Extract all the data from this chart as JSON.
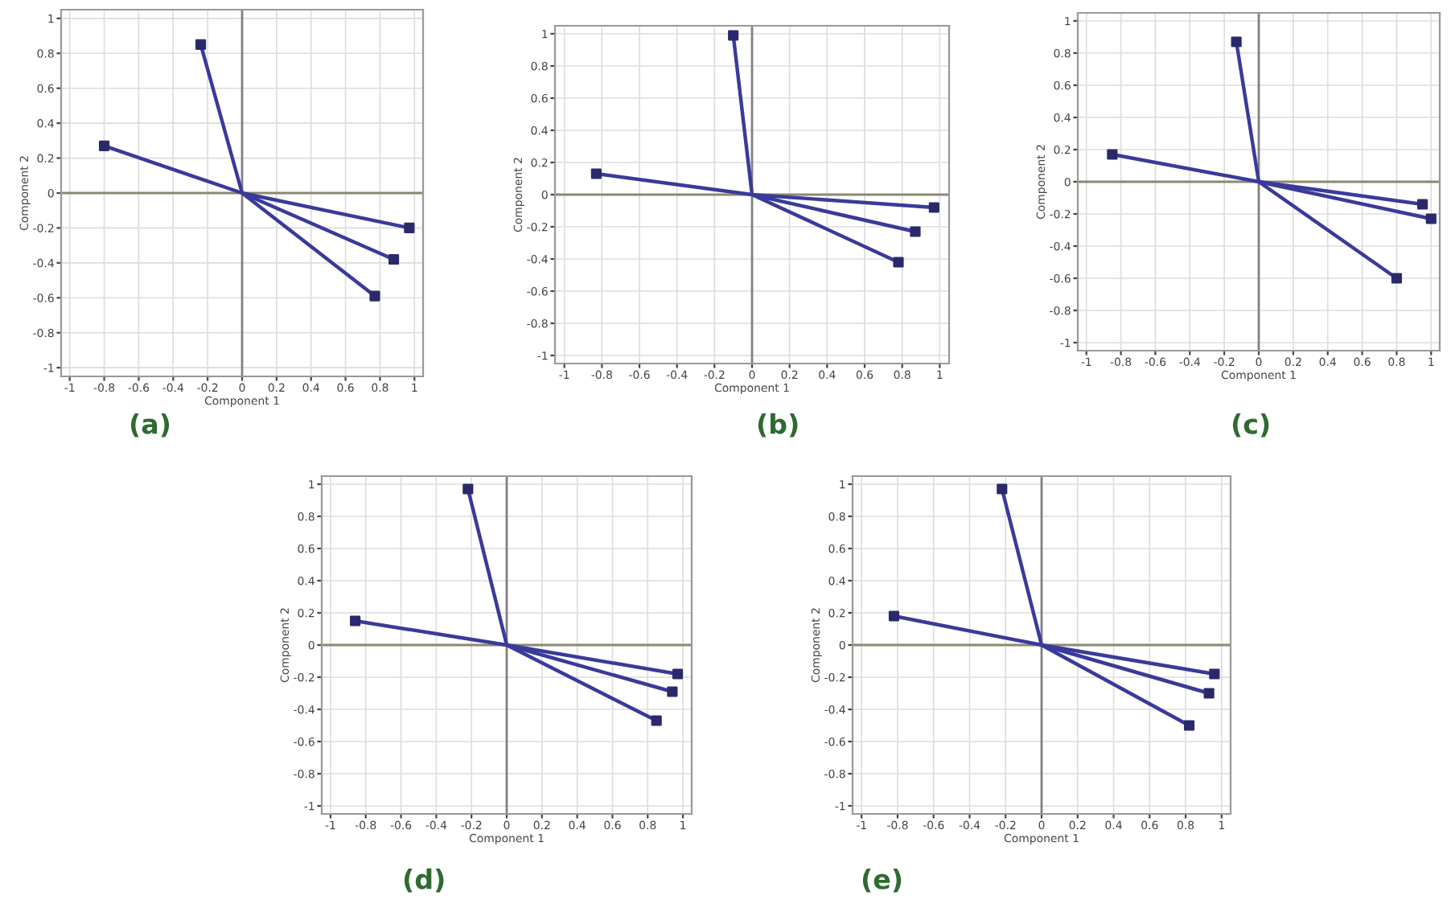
{
  "chart_data": [
    {
      "type": "line",
      "title": "(a)",
      "xlabel": "Component 1",
      "ylabel": "Component 2",
      "xlim": [
        -1.05,
        1.05
      ],
      "ylim": [
        -1.05,
        1.05
      ],
      "xticks": [
        -1,
        -0.8,
        -0.6,
        -0.4,
        -0.2,
        0,
        0.2,
        0.4,
        0.6,
        0.8,
        1
      ],
      "yticks": [
        -1,
        -0.8,
        -0.6,
        -0.4,
        -0.2,
        0,
        0.2,
        0.4,
        0.6,
        0.8,
        1
      ],
      "grid": true,
      "ref_lines": [
        {
          "axis": "x",
          "value": 0,
          "color": "#808080"
        },
        {
          "axis": "y",
          "value": 0,
          "color": "#8a8a70"
        }
      ],
      "series": [
        {
          "color": "#3a3a9a",
          "x": [
            0,
            -0.24
          ],
          "values": [
            0,
            0.85
          ]
        },
        {
          "color": "#3a3a9a",
          "x": [
            -0.8,
            0,
            0.97
          ],
          "values": [
            0.27,
            0,
            -0.2
          ]
        },
        {
          "color": "#3a3a9a",
          "x": [
            0,
            0.88
          ],
          "values": [
            0,
            -0.38
          ]
        },
        {
          "color": "#3a3a9a",
          "x": [
            0,
            0.77
          ],
          "values": [
            0,
            -0.59
          ]
        },
        {
          "type": "scatter",
          "marker": "square",
          "color": "#2a2a6a",
          "x": [
            -0.24,
            -0.8,
            0.97,
            0.88,
            0.77
          ],
          "values": [
            0.85,
            0.27,
            -0.2,
            -0.38,
            -0.59
          ]
        }
      ]
    },
    {
      "type": "line",
      "title": "(b)",
      "xlabel": "Component 1",
      "ylabel": "Component 2",
      "xlim": [
        -1.05,
        1.05
      ],
      "ylim": [
        -1.05,
        1.05
      ],
      "xticks": [
        -1,
        -0.8,
        -0.6,
        -0.4,
        -0.2,
        0,
        0.2,
        0.4,
        0.6,
        0.8,
        1
      ],
      "yticks": [
        -1,
        -0.8,
        -0.6,
        -0.4,
        -0.2,
        0,
        0.2,
        0.4,
        0.6,
        0.8,
        1
      ],
      "grid": true,
      "ref_lines": [
        {
          "axis": "x",
          "value": 0,
          "color": "#808080"
        },
        {
          "axis": "y",
          "value": 0,
          "color": "#8a8a70"
        }
      ],
      "series": [
        {
          "color": "#3a3a9a",
          "x": [
            0,
            -0.1
          ],
          "values": [
            0,
            0.99
          ]
        },
        {
          "color": "#3a3a9a",
          "x": [
            -0.83,
            0,
            0.97
          ],
          "values": [
            0.13,
            0,
            -0.08
          ]
        },
        {
          "color": "#3a3a9a",
          "x": [
            0,
            0.87
          ],
          "values": [
            0,
            -0.23
          ]
        },
        {
          "color": "#3a3a9a",
          "x": [
            0,
            0.78
          ],
          "values": [
            0,
            -0.42
          ]
        },
        {
          "type": "scatter",
          "marker": "square",
          "color": "#2a2a6a",
          "x": [
            -0.1,
            -0.83,
            0.97,
            0.87,
            0.78
          ],
          "values": [
            0.99,
            0.13,
            -0.08,
            -0.23,
            -0.42
          ]
        }
      ]
    },
    {
      "type": "line",
      "title": "(c)",
      "xlabel": "Component 1",
      "ylabel": "Component 2",
      "xlim": [
        -1.05,
        1.05
      ],
      "ylim": [
        -1.05,
        1.05
      ],
      "xticks": [
        -1,
        -0.8,
        -0.6,
        -0.4,
        -0.2,
        0,
        0.2,
        0.4,
        0.6,
        0.8,
        1
      ],
      "yticks": [
        -1,
        -0.8,
        -0.6,
        -0.4,
        -0.2,
        0,
        0.2,
        0.4,
        0.6,
        0.8,
        1
      ],
      "grid": true,
      "ref_lines": [
        {
          "axis": "x",
          "value": 0,
          "color": "#808080"
        },
        {
          "axis": "y",
          "value": 0,
          "color": "#8a8a70"
        }
      ],
      "series": [
        {
          "color": "#3a3a9a",
          "x": [
            0,
            -0.13
          ],
          "values": [
            0,
            0.87
          ]
        },
        {
          "color": "#3a3a9a",
          "x": [
            -0.85,
            0,
            0.95
          ],
          "values": [
            0.17,
            0,
            -0.14
          ]
        },
        {
          "color": "#3a3a9a",
          "x": [
            0,
            1.0
          ],
          "values": [
            0,
            -0.23
          ]
        },
        {
          "color": "#3a3a9a",
          "x": [
            0,
            0.8
          ],
          "values": [
            0,
            -0.6
          ]
        },
        {
          "type": "scatter",
          "marker": "square",
          "color": "#2a2a6a",
          "x": [
            -0.13,
            -0.85,
            0.95,
            1.0,
            0.8
          ],
          "values": [
            0.87,
            0.17,
            -0.14,
            -0.23,
            -0.6
          ]
        }
      ]
    },
    {
      "type": "line",
      "title": "(d)",
      "xlabel": "Component 1",
      "ylabel": "Component 2",
      "xlim": [
        -1.05,
        1.05
      ],
      "ylim": [
        -1.05,
        1.05
      ],
      "xticks": [
        -1,
        -0.8,
        -0.6,
        -0.4,
        -0.2,
        0,
        0.2,
        0.4,
        0.6,
        0.8,
        1
      ],
      "yticks": [
        -1,
        -0.8,
        -0.6,
        -0.4,
        -0.2,
        0,
        0.2,
        0.4,
        0.6,
        0.8,
        1
      ],
      "grid": true,
      "ref_lines": [
        {
          "axis": "x",
          "value": 0,
          "color": "#808080"
        },
        {
          "axis": "y",
          "value": 0,
          "color": "#8a8a70"
        }
      ],
      "series": [
        {
          "color": "#3a3a9a",
          "x": [
            0,
            -0.22
          ],
          "values": [
            0,
            0.97
          ]
        },
        {
          "color": "#3a3a9a",
          "x": [
            -0.86,
            0,
            0.97
          ],
          "values": [
            0.15,
            0,
            -0.18
          ]
        },
        {
          "color": "#3a3a9a",
          "x": [
            0,
            0.94
          ],
          "values": [
            0,
            -0.29
          ]
        },
        {
          "color": "#3a3a9a",
          "x": [
            0,
            0.85
          ],
          "values": [
            0,
            -0.47
          ]
        },
        {
          "type": "scatter",
          "marker": "square",
          "color": "#2a2a6a",
          "x": [
            -0.22,
            -0.86,
            0.97,
            0.94,
            0.85
          ],
          "values": [
            0.97,
            0.15,
            -0.18,
            -0.29,
            -0.47
          ]
        }
      ]
    },
    {
      "type": "line",
      "title": "(e)",
      "xlabel": "Component 1",
      "ylabel": "Component 2",
      "xlim": [
        -1.05,
        1.05
      ],
      "ylim": [
        -1.05,
        1.05
      ],
      "xticks": [
        -1,
        -0.8,
        -0.6,
        -0.4,
        -0.2,
        0,
        0.2,
        0.4,
        0.6,
        0.8,
        1
      ],
      "yticks": [
        -1,
        -0.8,
        -0.6,
        -0.4,
        -0.2,
        0,
        0.2,
        0.4,
        0.6,
        0.8,
        1
      ],
      "grid": true,
      "ref_lines": [
        {
          "axis": "x",
          "value": 0,
          "color": "#808080"
        },
        {
          "axis": "y",
          "value": 0,
          "color": "#8a8a70"
        }
      ],
      "series": [
        {
          "color": "#3a3a9a",
          "x": [
            0,
            -0.22
          ],
          "values": [
            0,
            0.97
          ]
        },
        {
          "color": "#3a3a9a",
          "x": [
            -0.82,
            0,
            0.96
          ],
          "values": [
            0.18,
            0,
            -0.18
          ]
        },
        {
          "color": "#3a3a9a",
          "x": [
            0,
            0.93
          ],
          "values": [
            0,
            -0.3
          ]
        },
        {
          "color": "#3a3a9a",
          "x": [
            0,
            0.82
          ],
          "values": [
            0,
            -0.5
          ]
        },
        {
          "type": "scatter",
          "marker": "square",
          "color": "#2a2a6a",
          "x": [
            -0.22,
            -0.82,
            0.96,
            0.93,
            0.82
          ],
          "values": [
            0.97,
            0.18,
            -0.18,
            -0.3,
            -0.5
          ]
        }
      ]
    }
  ]
}
